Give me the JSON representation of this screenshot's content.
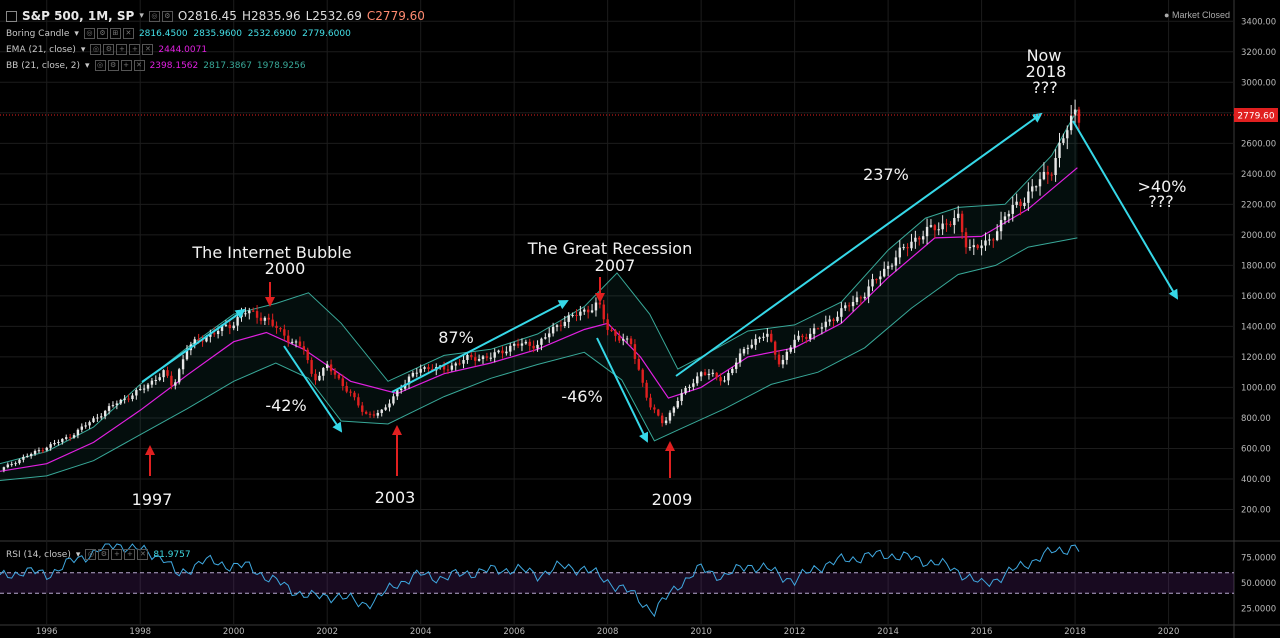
{
  "header": {
    "symbol": "S&P 500, 1M, SP",
    "open": "O2816.45",
    "high": "H2835.96",
    "low": "L2532.69",
    "close": "C2779.60",
    "market_status": "● Market Closed",
    "price_tag": "2779.60"
  },
  "legends": {
    "candle": {
      "name": "Boring Candle",
      "values": "2816.4500  2835.9600  2532.6900  2779.6000"
    },
    "ema": {
      "name": "EMA (21, close)",
      "value": "2444.0071"
    },
    "bb": {
      "name": "BB (21, close, 2)",
      "v1": "2398.1562",
      "v2": "2817.3867",
      "v3": "1978.9256"
    },
    "rsi": {
      "name": "RSI (14, close)",
      "value": "81.9757"
    }
  },
  "colors": {
    "up": "#e8e8e8",
    "down": "#e02020",
    "ema": "#e020e0",
    "bb": "#38a898",
    "arrow": "#36d8e8",
    "red_arrow": "#e02020",
    "rsi": "#3fa8e0",
    "accent": "#ff3b30"
  },
  "annotations": {
    "bubble_title": "The Internet Bubble",
    "bubble_year": "2000",
    "recession_title": "The Great Recession",
    "recession_year": "2007",
    "now_line1": "Now",
    "now_line2": "2018",
    "now_line3": "???",
    "pct_237": "237%",
    "pct_87": "87%",
    "pct_neg42": "-42%",
    "pct_neg46": "-46%",
    "pct_40_line1": ">40%",
    "pct_40_line2": "???",
    "year_1997": "1997",
    "year_2003": "2003",
    "year_2009": "2009"
  },
  "chart_data": [
    {
      "type": "line",
      "title": "S&P 500, 1M, SP",
      "xlabel": "",
      "ylabel": "",
      "xlim": [
        1995.0,
        2021.4
      ],
      "ylim": [
        0,
        3500
      ],
      "x_ticks": [
        "1996",
        "1998",
        "2000",
        "2002",
        "2004",
        "2006",
        "2008",
        "2010",
        "2012",
        "2014",
        "2016",
        "2018",
        "2020"
      ],
      "y_ticks": [
        "200.00",
        "400.00",
        "600.00",
        "800.00",
        "1000.00",
        "1200.00",
        "1400.00",
        "1600.00",
        "1800.00",
        "2000.00",
        "2200.00",
        "2400.00",
        "2600.00",
        "2800.00",
        "3000.00",
        "3200.00",
        "3400.00"
      ],
      "series": [
        {
          "name": "S&P 500 (monthly close, approx.)",
          "x": [
            1995.0,
            1995.5,
            1996.0,
            1996.5,
            1997.0,
            1997.5,
            1998.0,
            1998.5,
            1998.7,
            1999.0,
            1999.5,
            2000.0,
            2000.2,
            2000.7,
            2001.0,
            2001.5,
            2001.7,
            2002.0,
            2002.5,
            2002.8,
            2003.2,
            2003.5,
            2004.0,
            2004.5,
            2005.0,
            2005.5,
            2006.0,
            2006.5,
            2007.0,
            2007.5,
            2007.8,
            2008.0,
            2008.5,
            2008.9,
            2009.2,
            2009.5,
            2010.0,
            2010.5,
            2011.0,
            2011.4,
            2011.7,
            2012.0,
            2012.5,
            2013.0,
            2013.5,
            2014.0,
            2014.5,
            2015.0,
            2015.5,
            2015.7,
            2016.1,
            2016.5,
            2017.0,
            2017.5,
            2018.0,
            2018.1
          ],
          "y": [
            460,
            540,
            610,
            680,
            790,
            900,
            980,
            1100,
            1000,
            1260,
            1350,
            1420,
            1500,
            1450,
            1360,
            1250,
            1050,
            1140,
            960,
            820,
            840,
            980,
            1130,
            1120,
            1190,
            1200,
            1280,
            1280,
            1430,
            1500,
            1550,
            1380,
            1280,
            880,
            760,
            920,
            1100,
            1050,
            1280,
            1350,
            1150,
            1310,
            1380,
            1500,
            1620,
            1800,
            1960,
            2050,
            2100,
            1920,
            1930,
            2120,
            2270,
            2440,
            2820,
            2780
          ]
        },
        {
          "name": "EMA (21, close)",
          "x": [
            1995.0,
            1996.0,
            1997.0,
            1998.0,
            1999.0,
            2000.0,
            2000.7,
            2001.5,
            2002.5,
            2003.5,
            2004.5,
            2005.5,
            2006.5,
            2007.5,
            2008.0,
            2008.7,
            2009.3,
            2010.0,
            2011.0,
            2012.0,
            2013.0,
            2014.0,
            2015.0,
            2016.0,
            2017.0,
            2018.05
          ],
          "y": [
            450,
            500,
            640,
            850,
            1080,
            1300,
            1360,
            1250,
            1040,
            960,
            1090,
            1160,
            1250,
            1380,
            1420,
            1200,
            930,
            1000,
            1200,
            1260,
            1420,
            1720,
            1980,
            1990,
            2170,
            2440
          ]
        },
        {
          "name": "BB upper",
          "x": [
            1995.0,
            1996.0,
            1997.0,
            1998.0,
            1999.0,
            2000.0,
            2000.9,
            2001.6,
            2002.3,
            2003.3,
            2004.5,
            2005.5,
            2006.5,
            2007.5,
            2008.2,
            2008.9,
            2009.5,
            2010.0,
            2011.0,
            2012.0,
            2013.0,
            2014.0,
            2014.8,
            2015.5,
            2016.5,
            2017.5,
            2018.05
          ],
          "y": [
            500,
            580,
            740,
            1020,
            1260,
            1480,
            1550,
            1620,
            1420,
            1040,
            1210,
            1250,
            1350,
            1530,
            1750,
            1480,
            1120,
            1200,
            1370,
            1410,
            1560,
            1900,
            2110,
            2180,
            2200,
            2520,
            2820
          ]
        },
        {
          "name": "BB lower",
          "x": [
            1995.0,
            1996.0,
            1997.0,
            1998.0,
            1999.0,
            2000.0,
            2000.9,
            2001.6,
            2002.3,
            2003.3,
            2004.5,
            2005.5,
            2006.5,
            2007.5,
            2008.3,
            2009.0,
            2009.5,
            2010.5,
            2011.5,
            2012.5,
            2013.5,
            2014.5,
            2015.5,
            2016.3,
            2017.0,
            2018.05
          ],
          "y": [
            390,
            420,
            520,
            690,
            860,
            1040,
            1160,
            1060,
            780,
            760,
            940,
            1060,
            1150,
            1230,
            1050,
            650,
            720,
            860,
            1020,
            1100,
            1260,
            1520,
            1740,
            1800,
            1920,
            1980
          ]
        }
      ]
    },
    {
      "type": "line",
      "title": "RSI (14, close)",
      "ylim": [
        10,
        90
      ],
      "y_ticks": [
        "25.0000",
        "50.0000",
        "75.0000"
      ],
      "reference_lines": [
        40,
        60
      ],
      "series": [
        {
          "name": "RSI (14, close)",
          "x": [
            1995.0,
            1995.5,
            1996.0,
            1996.5,
            1997.0,
            1997.5,
            1998.0,
            1998.5,
            1998.8,
            1999.3,
            1999.8,
            2000.3,
            2000.8,
            2001.2,
            2001.7,
            2002.2,
            2002.7,
            2003.0,
            2003.5,
            2004.0,
            2004.5,
            2005.0,
            2005.5,
            2006.0,
            2006.5,
            2007.0,
            2007.5,
            2008.0,
            2008.5,
            2009.0,
            2009.5,
            2010.0,
            2010.5,
            2011.0,
            2011.5,
            2012.0,
            2012.5,
            2013.0,
            2013.5,
            2014.0,
            2014.5,
            2015.0,
            2015.5,
            2016.0,
            2016.5,
            2017.0,
            2017.5,
            2018.0,
            2018.1
          ],
          "y": [
            55,
            62,
            58,
            70,
            80,
            88,
            82,
            75,
            56,
            72,
            68,
            66,
            54,
            44,
            36,
            38,
            30,
            32,
            50,
            58,
            55,
            60,
            62,
            64,
            58,
            66,
            64,
            52,
            40,
            22,
            48,
            64,
            56,
            68,
            62,
            52,
            66,
            72,
            76,
            78,
            74,
            70,
            62,
            48,
            58,
            70,
            80,
            86,
            82
          ]
        }
      ]
    }
  ]
}
